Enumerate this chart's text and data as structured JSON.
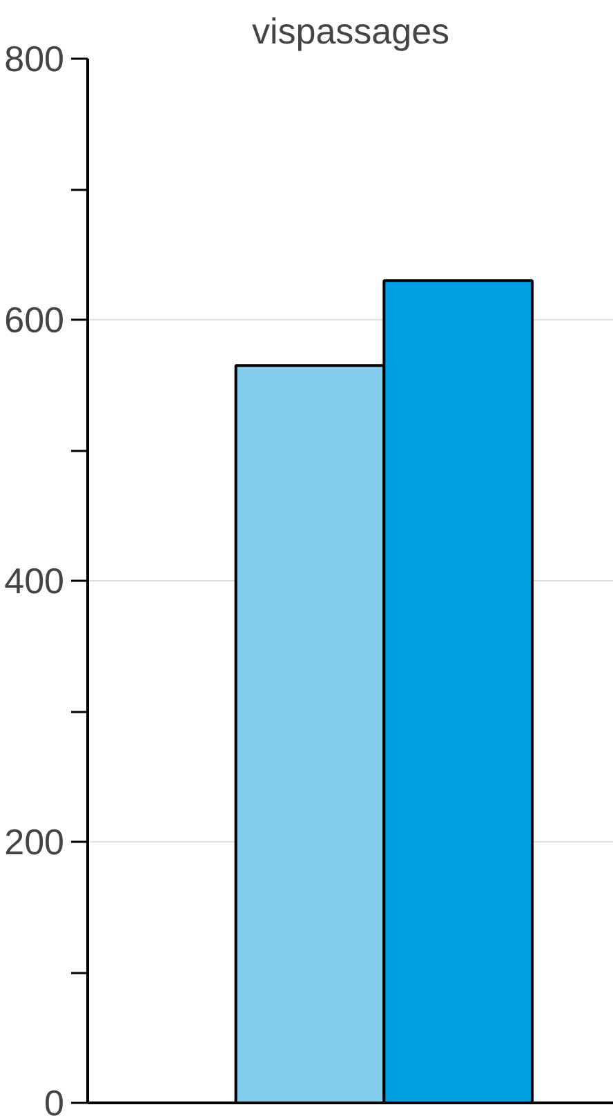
{
  "chart_data": {
    "type": "bar",
    "title": "vispassages",
    "categories": [
      null,
      null
    ],
    "values": [
      565,
      630
    ],
    "colors": [
      "#86ceee",
      "#009fe3"
    ],
    "ylim": [
      0,
      800
    ],
    "yticks": [
      0,
      {
        "value": 100,
        "label": null
      },
      200,
      {
        "value": 300,
        "label": null
      },
      400,
      {
        "value": 500,
        "label": null
      },
      600,
      {
        "value": 700,
        "label": null
      },
      800
    ],
    "grid": "y",
    "tick_labels": "y"
  }
}
